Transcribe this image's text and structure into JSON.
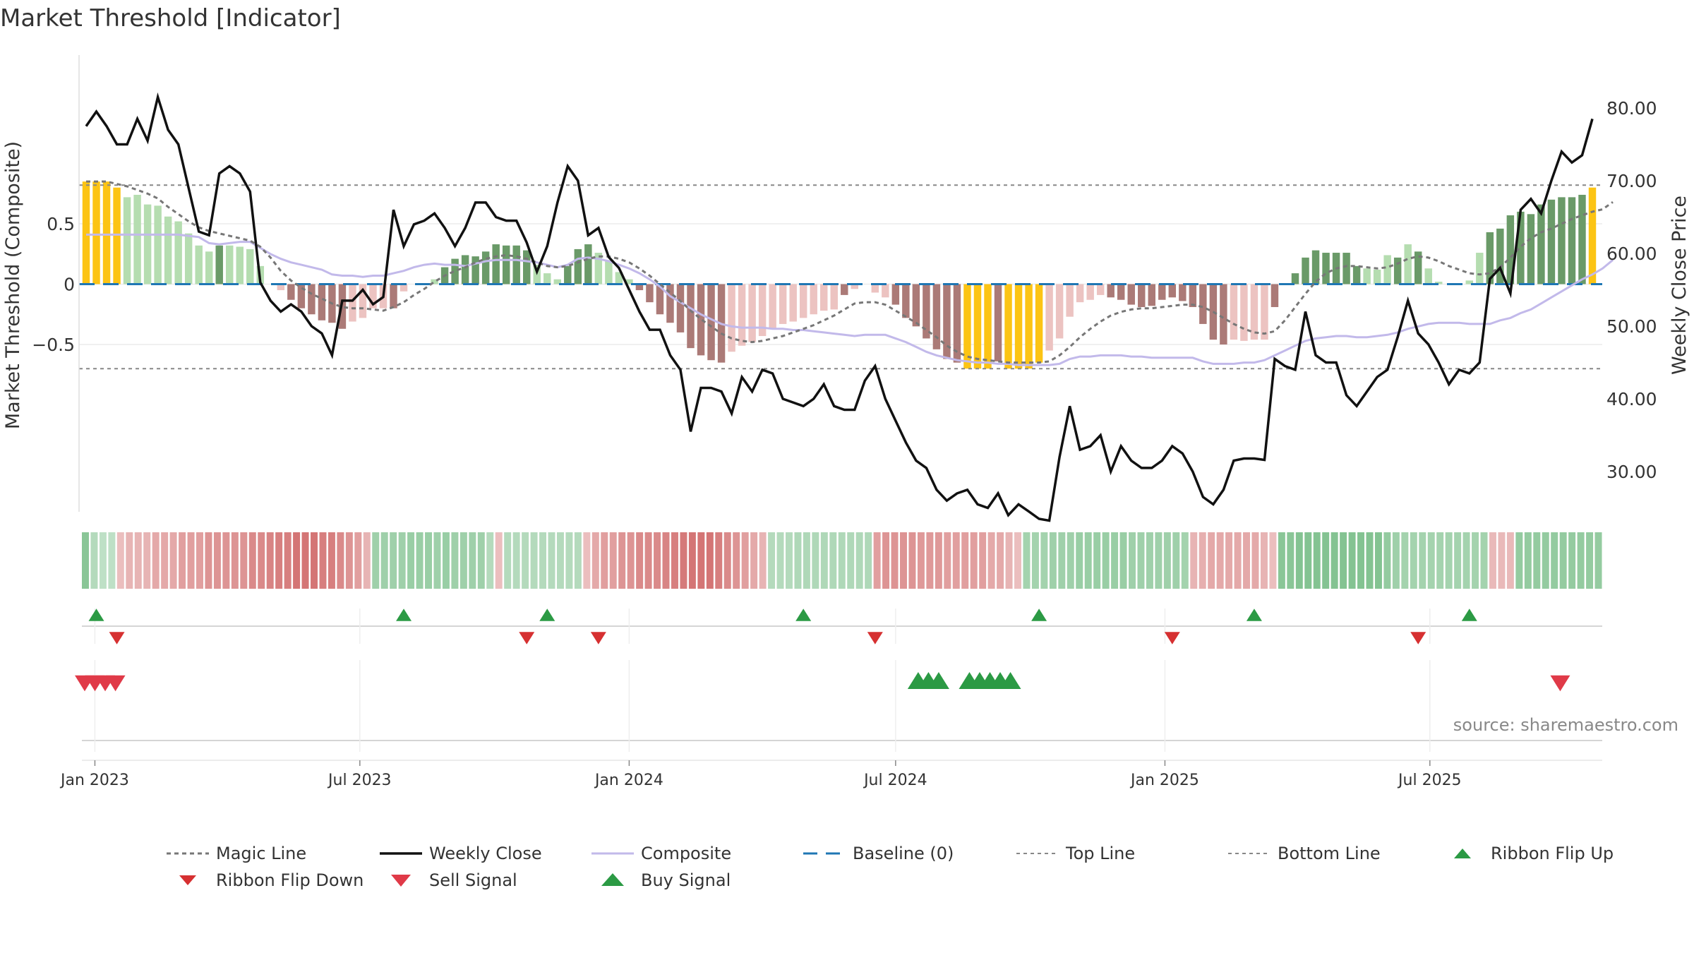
{
  "chart_data": {
    "type": "bar",
    "title": "Market Threshold [Indicator]",
    "ylabel_left": "Market Threshold (Composite)",
    "ylabel_right": "Weekly Close Price",
    "source": "source: sharemaestro.com",
    "x_start": "2022-12-26",
    "x_step_days": 7,
    "x_ticks": [
      {
        "date": "2023-01-01",
        "label": "Jan 2023"
      },
      {
        "date": "2023-07-01",
        "label": "Jul 2023"
      },
      {
        "date": "2024-01-01",
        "label": "Jan 2024"
      },
      {
        "date": "2024-07-01",
        "label": "Jul 2024"
      },
      {
        "date": "2025-01-01",
        "label": "Jan 2025"
      },
      {
        "date": "2025-07-01",
        "label": "Jul 2025"
      }
    ],
    "y_left": {
      "range": [
        -0.93,
        0.95
      ],
      "ticks": [
        {
          "v": 0.5,
          "label": "0.5"
        },
        {
          "v": 0,
          "label": "0"
        },
        {
          "v": -0.5,
          "label": "−0.5"
        }
      ]
    },
    "y_right": {
      "range": [
        23.75,
        80.5
      ],
      "ticks": [
        {
          "v": 80,
          "label": "80.00"
        },
        {
          "v": 70,
          "label": "70.00"
        },
        {
          "v": 60,
          "label": "60.00"
        },
        {
          "v": 50,
          "label": "50.00"
        },
        {
          "v": 40,
          "label": "40.00"
        },
        {
          "v": 30,
          "label": "30.00"
        }
      ]
    },
    "top_line": 0.82,
    "bottom_line": -0.7,
    "baseline": 0,
    "colors": {
      "extreme": "#fcc414",
      "pos_strong": "#6a9a68",
      "pos_weak": "#b5ddb0",
      "neg_strong": "#ab7a77",
      "neg_weak": "#ecc3c1",
      "close": "#111111",
      "composite": "#c2b9ea",
      "magic": "#777777",
      "baseline": "#1f77b4",
      "threshold_lines": "#888888",
      "ribbon_up": "#2b9a44",
      "ribbon_down": "#d63031",
      "buy": "#2b9a44",
      "sell": "#e03a48"
    },
    "bars": [
      0.85,
      0.85,
      0.85,
      0.8,
      0.72,
      0.74,
      0.66,
      0.65,
      0.56,
      0.52,
      0.42,
      0.32,
      0.27,
      0.32,
      0.32,
      0.31,
      0.29,
      0.15,
      0.0,
      -0.05,
      -0.13,
      -0.2,
      -0.25,
      -0.3,
      -0.32,
      -0.37,
      -0.31,
      -0.28,
      -0.2,
      -0.2,
      -0.2,
      -0.06,
      0.0,
      0.0,
      0.04,
      0.14,
      0.21,
      0.24,
      0.23,
      0.27,
      0.33,
      0.32,
      0.32,
      0.28,
      0.16,
      0.09,
      0.04,
      0.15,
      0.29,
      0.33,
      0.26,
      0.2,
      0.1,
      0.04,
      -0.05,
      -0.15,
      -0.25,
      -0.32,
      -0.4,
      -0.53,
      -0.59,
      -0.63,
      -0.65,
      -0.56,
      -0.51,
      -0.48,
      -0.43,
      -0.37,
      -0.33,
      -0.31,
      -0.28,
      -0.25,
      -0.22,
      -0.21,
      -0.09,
      -0.04,
      0.0,
      -0.07,
      -0.11,
      -0.17,
      -0.28,
      -0.35,
      -0.45,
      -0.54,
      -0.62,
      -0.65,
      -0.7,
      -0.7,
      -0.7,
      -0.64,
      -0.7,
      -0.7,
      -0.7,
      -0.65,
      -0.55,
      -0.45,
      -0.27,
      -0.15,
      -0.13,
      -0.09,
      -0.11,
      -0.13,
      -0.17,
      -0.19,
      -0.18,
      -0.13,
      -0.11,
      -0.14,
      -0.19,
      -0.33,
      -0.46,
      -0.5,
      -0.46,
      -0.47,
      -0.46,
      -0.46,
      -0.19,
      0.0,
      0.09,
      0.22,
      0.28,
      0.26,
      0.26,
      0.26,
      0.15,
      0.13,
      0.12,
      0.24,
      0.22,
      0.33,
      0.27,
      0.13,
      0.02,
      0.0,
      0.0,
      0.03,
      0.26,
      0.43,
      0.46,
      0.57,
      0.6,
      0.58,
      0.66,
      0.7,
      0.72,
      0.72,
      0.74,
      0.8
    ],
    "bar_classes": [
      "e",
      "e",
      "e",
      "e",
      "w",
      "w",
      "w",
      "w",
      "w",
      "w",
      "w",
      "w",
      "w",
      "s",
      "w",
      "w",
      "w",
      "w",
      "w",
      "w",
      "s",
      "s",
      "s",
      "s",
      "s",
      "s",
      "w",
      "w",
      "w",
      "w",
      "s",
      "w",
      "w",
      "w",
      "w",
      "s",
      "s",
      "s",
      "s",
      "s",
      "s",
      "s",
      "s",
      "s",
      "w",
      "w",
      "w",
      "s",
      "s",
      "s",
      "w",
      "w",
      "w",
      "w",
      "s",
      "s",
      "s",
      "s",
      "s",
      "s",
      "s",
      "s",
      "s",
      "w",
      "w",
      "w",
      "w",
      "w",
      "w",
      "w",
      "w",
      "w",
      "w",
      "w",
      "s",
      "w",
      "w",
      "w",
      "w",
      "s",
      "s",
      "s",
      "s",
      "s",
      "s",
      "s",
      "e",
      "e",
      "e",
      "s",
      "e",
      "e",
      "e",
      "e",
      "w",
      "w",
      "w",
      "w",
      "w",
      "w",
      "s",
      "s",
      "s",
      "s",
      "s",
      "s",
      "s",
      "s",
      "s",
      "s",
      "s",
      "s",
      "w",
      "w",
      "w",
      "w",
      "s",
      "w",
      "s",
      "s",
      "s",
      "s",
      "s",
      "s",
      "s",
      "w",
      "w",
      "w",
      "s",
      "w",
      "s",
      "w",
      "w",
      "w",
      "w",
      "w",
      "w",
      "s",
      "s",
      "s",
      "s",
      "s",
      "s",
      "s",
      "s",
      "s",
      "s",
      "e"
    ],
    "close": [
      77.5,
      79.5,
      77.5,
      75.0,
      75.0,
      78.5,
      75.5,
      81.5,
      77.0,
      75.0,
      69.0,
      63.0,
      62.5,
      71.0,
      72.0,
      71.0,
      68.5,
      56.0,
      53.5,
      52.0,
      53.0,
      52.0,
      50.0,
      49.0,
      46.0,
      53.5,
      53.5,
      55.0,
      53.0,
      54.0,
      66.0,
      61.0,
      64.0,
      64.5,
      65.5,
      63.5,
      61.0,
      63.5,
      67.0,
      67.0,
      65.0,
      64.5,
      64.5,
      61.5,
      57.5,
      61.0,
      67.0,
      72.0,
      70.0,
      62.5,
      63.5,
      59.5,
      58.0,
      55.0,
      52.0,
      49.5,
      49.5,
      46.0,
      44.0,
      35.5,
      41.5,
      41.5,
      41.0,
      38.0,
      43.0,
      41.0,
      44.0,
      43.5,
      40.0,
      39.5,
      39.0,
      40.0,
      42.0,
      39.0,
      38.5,
      38.5,
      42.5,
      44.5,
      40.0,
      37.0,
      34.0,
      31.5,
      30.5,
      27.5,
      26.0,
      27.0,
      27.5,
      25.5,
      25.0,
      27.0,
      24.0,
      25.5,
      24.5,
      23.5,
      23.25,
      32.0,
      39.0,
      33.0,
      33.5,
      35.0,
      30.0,
      33.5,
      31.5,
      30.5,
      30.5,
      31.5,
      33.5,
      32.5,
      30.0,
      26.5,
      25.5,
      27.5,
      31.5,
      31.8,
      31.8,
      31.6,
      45.5,
      44.5,
      44.0,
      52.0,
      46.0,
      45.0,
      45.0,
      40.5,
      39.0,
      41.0,
      43.0,
      44.0,
      48.5,
      53.5,
      49.0,
      47.5,
      45.0,
      42.0,
      44.0,
      43.5,
      45.0,
      56.5,
      58.0,
      54.5,
      66.0,
      67.5,
      65.5,
      70.0,
      74.0,
      72.5,
      73.5,
      78.5
    ],
    "composite": [
      0.41,
      0.41,
      0.41,
      0.41,
      0.41,
      0.41,
      0.41,
      0.41,
      0.41,
      0.41,
      0.4,
      0.39,
      0.34,
      0.33,
      0.34,
      0.35,
      0.35,
      0.3,
      0.25,
      0.21,
      0.18,
      0.16,
      0.14,
      0.12,
      0.08,
      0.07,
      0.07,
      0.06,
      0.07,
      0.07,
      0.09,
      0.11,
      0.14,
      0.16,
      0.17,
      0.16,
      0.16,
      0.15,
      0.17,
      0.19,
      0.2,
      0.2,
      0.2,
      0.19,
      0.18,
      0.16,
      0.14,
      0.16,
      0.21,
      0.22,
      0.21,
      0.19,
      0.16,
      0.13,
      0.09,
      0.04,
      -0.02,
      -0.1,
      -0.15,
      -0.2,
      -0.25,
      -0.29,
      -0.33,
      -0.35,
      -0.36,
      -0.36,
      -0.36,
      -0.37,
      -0.37,
      -0.38,
      -0.38,
      -0.39,
      -0.4,
      -0.41,
      -0.42,
      -0.43,
      -0.42,
      -0.42,
      -0.42,
      -0.45,
      -0.48,
      -0.52,
      -0.56,
      -0.59,
      -0.61,
      -0.63,
      -0.64,
      -0.65,
      -0.65,
      -0.66,
      -0.66,
      -0.67,
      -0.67,
      -0.67,
      -0.67,
      -0.66,
      -0.62,
      -0.6,
      -0.6,
      -0.59,
      -0.59,
      -0.59,
      -0.6,
      -0.6,
      -0.61,
      -0.61,
      -0.61,
      -0.61,
      -0.61,
      -0.64,
      -0.66,
      -0.66,
      -0.66,
      -0.65,
      -0.65,
      -0.63,
      -0.59,
      -0.55,
      -0.51,
      -0.47,
      -0.45,
      -0.44,
      -0.43,
      -0.43,
      -0.44,
      -0.44,
      -0.43,
      -0.42,
      -0.4,
      -0.37,
      -0.35,
      -0.33,
      -0.32,
      -0.32,
      -0.32,
      -0.33,
      -0.33,
      -0.33,
      -0.3,
      -0.28,
      -0.24,
      -0.21,
      -0.16,
      -0.11,
      -0.06,
      -0.01,
      0.04,
      0.08,
      0.13,
      0.2
    ],
    "magic": [
      0.85,
      0.85,
      0.85,
      0.83,
      0.81,
      0.78,
      0.75,
      0.71,
      0.64,
      0.58,
      0.52,
      0.47,
      0.44,
      0.42,
      0.4,
      0.38,
      0.36,
      0.31,
      0.22,
      0.11,
      0.03,
      -0.03,
      -0.08,
      -0.12,
      -0.16,
      -0.19,
      -0.2,
      -0.2,
      -0.21,
      -0.22,
      -0.19,
      -0.15,
      -0.09,
      -0.04,
      0.02,
      0.07,
      0.11,
      0.14,
      0.18,
      0.21,
      0.23,
      0.24,
      0.23,
      0.21,
      0.18,
      0.15,
      0.14,
      0.15,
      0.18,
      0.21,
      0.23,
      0.23,
      0.21,
      0.18,
      0.13,
      0.07,
      0.0,
      -0.07,
      -0.14,
      -0.22,
      -0.29,
      -0.35,
      -0.41,
      -0.45,
      -0.47,
      -0.48,
      -0.47,
      -0.45,
      -0.43,
      -0.4,
      -0.37,
      -0.34,
      -0.3,
      -0.26,
      -0.21,
      -0.16,
      -0.15,
      -0.15,
      -0.17,
      -0.22,
      -0.27,
      -0.32,
      -0.38,
      -0.44,
      -0.51,
      -0.56,
      -0.6,
      -0.62,
      -0.63,
      -0.64,
      -0.65,
      -0.65,
      -0.65,
      -0.65,
      -0.64,
      -0.59,
      -0.52,
      -0.44,
      -0.37,
      -0.31,
      -0.26,
      -0.23,
      -0.21,
      -0.2,
      -0.2,
      -0.19,
      -0.18,
      -0.17,
      -0.17,
      -0.19,
      -0.23,
      -0.28,
      -0.33,
      -0.37,
      -0.4,
      -0.41,
      -0.39,
      -0.3,
      -0.19,
      -0.08,
      0.02,
      0.09,
      0.13,
      0.15,
      0.15,
      0.14,
      0.13,
      0.14,
      0.17,
      0.21,
      0.23,
      0.22,
      0.19,
      0.15,
      0.12,
      0.09,
      0.08,
      0.09,
      0.14,
      0.22,
      0.31,
      0.38,
      0.43,
      0.46,
      0.5,
      0.54,
      0.57,
      0.6,
      0.62,
      0.68
    ],
    "ribbon": [
      0.7,
      0.3,
      0.2,
      0.2,
      -0.2,
      -0.3,
      -0.3,
      -0.3,
      -0.4,
      -0.4,
      -0.4,
      -0.5,
      -0.5,
      -0.5,
      -0.6,
      -0.6,
      -0.6,
      -0.6,
      -0.6,
      -0.7,
      -0.7,
      -0.75,
      -0.8,
      -0.8,
      -0.9,
      -0.9,
      -0.9,
      -0.8,
      -0.8,
      -0.7,
      -0.6,
      -0.5,
      -0.3,
      0.5,
      0.5,
      0.5,
      0.5,
      0.55,
      0.55,
      0.55,
      0.5,
      0.55,
      0.5,
      0.5,
      0.5,
      0.5,
      0.3,
      -0.2,
      0.3,
      0.3,
      0.3,
      0.3,
      0.3,
      0.3,
      0.3,
      0.3,
      0.3,
      -0.2,
      -0.4,
      -0.5,
      -0.5,
      -0.6,
      -0.6,
      -0.7,
      -0.7,
      -0.7,
      -0.75,
      -0.8,
      -0.85,
      -0.9,
      -0.9,
      -0.9,
      -0.8,
      -0.7,
      -0.6,
      -0.5,
      -0.4,
      -0.3,
      0.3,
      0.3,
      0.3,
      0.35,
      0.35,
      0.35,
      0.35,
      0.35,
      0.35,
      0.35,
      0.35,
      0.35,
      -0.5,
      -0.6,
      -0.6,
      -0.6,
      -0.6,
      -0.55,
      -0.55,
      -0.55,
      -0.5,
      -0.5,
      -0.5,
      -0.5,
      -0.5,
      -0.4,
      -0.4,
      -0.3,
      -0.2,
      0.45,
      0.45,
      0.45,
      0.5,
      0.5,
      0.5,
      0.55,
      0.55,
      0.55,
      0.55,
      0.55,
      0.55,
      0.5,
      0.5,
      0.5,
      0.5,
      0.5,
      0.5,
      0.45,
      -0.3,
      -0.35,
      -0.4,
      -0.4,
      -0.4,
      -0.4,
      -0.4,
      -0.4,
      -0.3,
      -0.2,
      0.7,
      0.7,
      0.75,
      0.75,
      0.75,
      0.75,
      0.75,
      0.75,
      0.75,
      0.75,
      0.75,
      0.75,
      0.6,
      0.5,
      0.45,
      0.45,
      0.45,
      0.45,
      0.45,
      0.45,
      0.45,
      0.45,
      0.45,
      0.45,
      -0.25,
      -0.25,
      -0.25,
      0.6,
      0.6,
      0.6,
      0.6,
      0.6,
      0.6,
      0.6,
      0.6,
      0.6,
      0.6
    ],
    "ribbon_flip_up": [
      1,
      31,
      45,
      70,
      93,
      114,
      135
    ],
    "ribbon_flip_down": [
      3,
      43,
      50,
      77,
      106,
      130
    ],
    "buy_signals": [
      81,
      82,
      83,
      86,
      87,
      88,
      89,
      90
    ],
    "sell_signals": [
      0,
      1,
      2,
      3,
      144
    ],
    "legend": [
      {
        "key": "magic",
        "label": "Magic Line"
      },
      {
        "key": "close",
        "label": "Weekly Close"
      },
      {
        "key": "composite",
        "label": "Composite"
      },
      {
        "key": "baseline",
        "label": "Baseline (0)"
      },
      {
        "key": "top",
        "label": "Top Line"
      },
      {
        "key": "bottom",
        "label": "Bottom Line"
      },
      {
        "key": "flipup",
        "label": "Ribbon Flip Up"
      },
      {
        "key": "flipdown",
        "label": "Ribbon Flip Down"
      },
      {
        "key": "sell",
        "label": "Sell Signal"
      },
      {
        "key": "buy",
        "label": "Buy Signal"
      }
    ]
  }
}
